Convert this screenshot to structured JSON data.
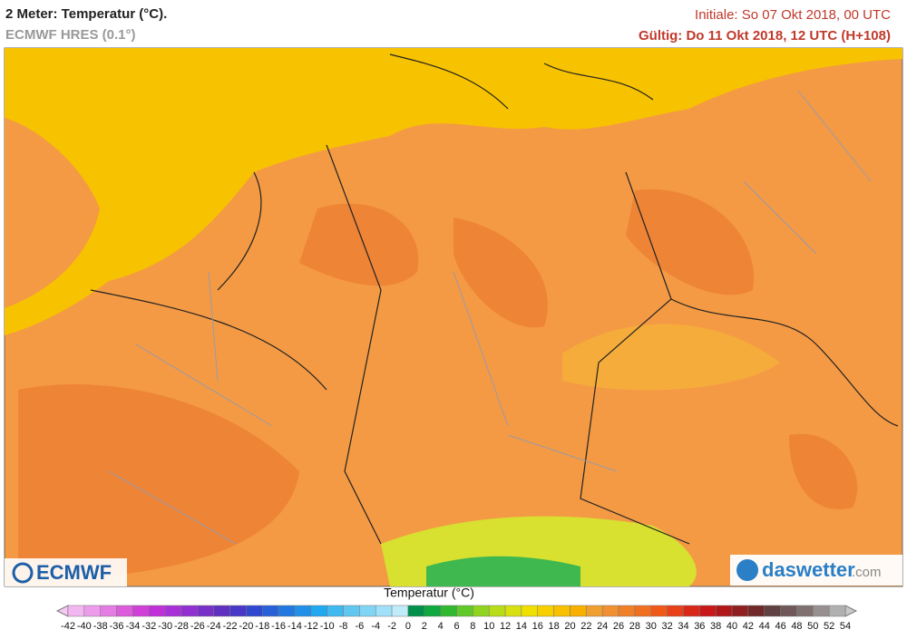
{
  "header": {
    "title": "2 Meter: Temperatur (°C).",
    "subtitle": "ECMWF HRES (0.1°)",
    "init": "Initiale: So 07 Okt 2018, 00 UTC",
    "valid": "Gültig: Do 11 Okt 2018, 12 UTC (H+108)"
  },
  "logos": {
    "left": "ECMWF",
    "right": "daswetter",
    "right_suffix": ".com"
  },
  "colorbar": {
    "title": "Temperatur (°C)",
    "ticks": [
      -42,
      -40,
      -38,
      -36,
      -34,
      -32,
      -30,
      -28,
      -26,
      -24,
      -22,
      -20,
      -18,
      -16,
      -14,
      -12,
      -10,
      -8,
      -6,
      -4,
      -2,
      0,
      2,
      4,
      6,
      8,
      10,
      12,
      14,
      16,
      18,
      20,
      22,
      24,
      26,
      28,
      30,
      32,
      34,
      36,
      38,
      40,
      42,
      44,
      46,
      48,
      50,
      52,
      54
    ],
    "low_color": "#f7c8f4",
    "high_color": "#c8c8c8",
    "colors": [
      "#f2b6f0",
      "#ec9cea",
      "#e47ce4",
      "#dc5cdc",
      "#d040d8",
      "#c030d8",
      "#a830d8",
      "#9030d0",
      "#7830c8",
      "#6030c0",
      "#4838c8",
      "#3048d0",
      "#2860d8",
      "#2078e0",
      "#2090e8",
      "#20a8f0",
      "#40b8f0",
      "#60c8f0",
      "#80d4f4",
      "#a0e0f8",
      "#c0ecfa",
      "#00904a",
      "#10a840",
      "#30b830",
      "#60c828",
      "#90d420",
      "#b8dc18",
      "#d8e010",
      "#f0e000",
      "#f8d000",
      "#f8c000",
      "#f8b000",
      "#f0a030",
      "#f09030",
      "#f08028",
      "#f07020",
      "#f05818",
      "#e84018",
      "#d82818",
      "#c81818",
      "#b01818",
      "#902020",
      "#702828",
      "#604040",
      "#705858",
      "#807070",
      "#989090",
      "#b0b0b0"
    ]
  }
}
